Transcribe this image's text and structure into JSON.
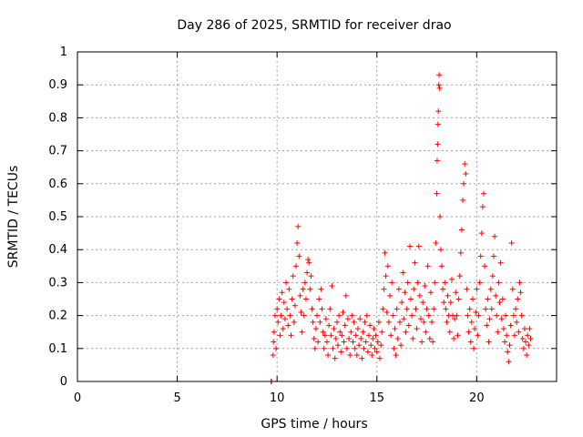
{
  "chart_data": {
    "type": "scatter",
    "title": "Day 286 of 2025, SRMTID for receiver drao",
    "xlabel": "GPS time / hours",
    "ylabel": "SRMTID / TECUs",
    "xlim": [
      0,
      24
    ],
    "ylim": [
      0,
      1
    ],
    "xticks": [
      0,
      5,
      10,
      15,
      20
    ],
    "xtick_labels": [
      "0",
      "5",
      "10",
      "15",
      "20"
    ],
    "yticks": [
      0,
      0.1,
      0.2,
      0.3,
      0.4,
      0.5,
      0.6,
      0.7,
      0.8,
      0.9,
      1
    ],
    "ytick_labels": [
      "0",
      "0.1",
      "0.2",
      "0.3",
      "0.4",
      "0.5",
      "0.6",
      "0.7",
      "0.8",
      "0.9",
      "1"
    ],
    "grid": true,
    "marker": "+",
    "color": "#ff0000",
    "series": [
      {
        "name": "SRMTID",
        "points": [
          [
            9.7,
            0.0
          ],
          [
            9.72,
            0.0
          ],
          [
            9.8,
            0.08
          ],
          [
            9.82,
            0.12
          ],
          [
            9.85,
            0.15
          ],
          [
            9.9,
            0.2
          ],
          [
            9.95,
            0.1
          ],
          [
            10.0,
            0.22
          ],
          [
            10.05,
            0.18
          ],
          [
            10.1,
            0.25
          ],
          [
            10.15,
            0.14
          ],
          [
            10.2,
            0.2
          ],
          [
            10.25,
            0.27
          ],
          [
            10.3,
            0.16
          ],
          [
            10.35,
            0.24
          ],
          [
            10.4,
            0.19
          ],
          [
            10.45,
            0.3
          ],
          [
            10.5,
            0.22
          ],
          [
            10.55,
            0.17
          ],
          [
            10.6,
            0.28
          ],
          [
            10.65,
            0.2
          ],
          [
            10.7,
            0.14
          ],
          [
            10.75,
            0.25
          ],
          [
            10.8,
            0.32
          ],
          [
            10.85,
            0.18
          ],
          [
            10.9,
            0.23
          ],
          [
            10.95,
            0.35
          ],
          [
            11.0,
            0.42
          ],
          [
            11.05,
            0.47
          ],
          [
            11.1,
            0.38
          ],
          [
            11.15,
            0.26
          ],
          [
            11.2,
            0.21
          ],
          [
            11.25,
            0.15
          ],
          [
            11.3,
            0.28
          ],
          [
            11.35,
            0.2
          ],
          [
            11.4,
            0.3
          ],
          [
            11.45,
            0.25
          ],
          [
            11.5,
            0.33
          ],
          [
            11.55,
            0.37
          ],
          [
            11.6,
            0.36
          ],
          [
            11.65,
            0.28
          ],
          [
            11.7,
            0.32
          ],
          [
            11.75,
            0.22
          ],
          [
            11.8,
            0.18
          ],
          [
            11.85,
            0.13
          ],
          [
            11.9,
            0.1
          ],
          [
            11.95,
            0.16
          ],
          [
            12.0,
            0.2
          ],
          [
            12.05,
            0.12
          ],
          [
            12.1,
            0.25
          ],
          [
            12.15,
            0.18
          ],
          [
            12.2,
            0.28
          ],
          [
            12.25,
            0.22
          ],
          [
            12.3,
            0.15
          ],
          [
            12.35,
            0.1
          ],
          [
            12.4,
            0.14
          ],
          [
            12.45,
            0.19
          ],
          [
            12.5,
            0.12
          ],
          [
            12.55,
            0.08
          ],
          [
            12.6,
            0.17
          ],
          [
            12.65,
            0.22
          ],
          [
            12.7,
            0.14
          ],
          [
            12.75,
            0.29
          ],
          [
            12.8,
            0.1
          ],
          [
            12.85,
            0.16
          ],
          [
            12.9,
            0.07
          ],
          [
            12.95,
            0.13
          ],
          [
            13.0,
            0.18
          ],
          [
            13.05,
            0.11
          ],
          [
            13.1,
            0.2
          ],
          [
            13.15,
            0.15
          ],
          [
            13.2,
            0.09
          ],
          [
            13.25,
            0.14
          ],
          [
            13.3,
            0.21
          ],
          [
            13.35,
            0.12
          ],
          [
            13.4,
            0.17
          ],
          [
            13.45,
            0.26
          ],
          [
            13.5,
            0.1
          ],
          [
            13.55,
            0.19
          ],
          [
            13.6,
            0.13
          ],
          [
            13.65,
            0.08
          ],
          [
            13.7,
            0.15
          ],
          [
            13.75,
            0.2
          ],
          [
            13.8,
            0.12
          ],
          [
            13.85,
            0.18
          ],
          [
            13.9,
            0.1
          ],
          [
            13.95,
            0.14
          ],
          [
            14.0,
            0.08
          ],
          [
            14.05,
            0.16
          ],
          [
            14.1,
            0.11
          ],
          [
            14.15,
            0.19
          ],
          [
            14.2,
            0.13
          ],
          [
            14.25,
            0.07
          ],
          [
            14.3,
            0.15
          ],
          [
            14.35,
            0.1
          ],
          [
            14.4,
            0.18
          ],
          [
            14.45,
            0.12
          ],
          [
            14.5,
            0.2
          ],
          [
            14.55,
            0.09
          ],
          [
            14.6,
            0.14
          ],
          [
            14.65,
            0.17
          ],
          [
            14.7,
            0.11
          ],
          [
            14.75,
            0.08
          ],
          [
            14.8,
            0.13
          ],
          [
            14.85,
            0.16
          ],
          [
            14.9,
            0.1
          ],
          [
            14.95,
            0.14
          ],
          [
            15.0,
            0.09
          ],
          [
            15.05,
            0.12
          ],
          [
            15.1,
            0.18
          ],
          [
            15.15,
            0.07
          ],
          [
            15.2,
            0.11
          ],
          [
            15.25,
            0.15
          ],
          [
            15.3,
            0.22
          ],
          [
            15.35,
            0.28
          ],
          [
            15.4,
            0.39
          ],
          [
            15.45,
            0.32
          ],
          [
            15.5,
            0.21
          ],
          [
            15.55,
            0.35
          ],
          [
            15.6,
            0.18
          ],
          [
            15.65,
            0.26
          ],
          [
            15.7,
            0.14
          ],
          [
            15.75,
            0.3
          ],
          [
            15.8,
            0.2
          ],
          [
            15.85,
            0.1
          ],
          [
            15.9,
            0.16
          ],
          [
            15.95,
            0.08
          ],
          [
            16.0,
            0.22
          ],
          [
            16.05,
            0.13
          ],
          [
            16.1,
            0.28
          ],
          [
            16.15,
            0.18
          ],
          [
            16.2,
            0.11
          ],
          [
            16.25,
            0.24
          ],
          [
            16.3,
            0.33
          ],
          [
            16.35,
            0.19
          ],
          [
            16.4,
            0.27
          ],
          [
            16.45,
            0.15
          ],
          [
            16.5,
            0.22
          ],
          [
            16.55,
            0.3
          ],
          [
            16.6,
            0.17
          ],
          [
            16.65,
            0.41
          ],
          [
            16.7,
            0.25
          ],
          [
            16.75,
            0.2
          ],
          [
            16.8,
            0.13
          ],
          [
            16.85,
            0.28
          ],
          [
            16.9,
            0.36
          ],
          [
            16.95,
            0.22
          ],
          [
            17.0,
            0.16
          ],
          [
            17.05,
            0.3
          ],
          [
            17.1,
            0.41
          ],
          [
            17.15,
            0.26
          ],
          [
            17.2,
            0.19
          ],
          [
            17.25,
            0.12
          ],
          [
            17.3,
            0.24
          ],
          [
            17.35,
            0.18
          ],
          [
            17.4,
            0.29
          ],
          [
            17.45,
            0.15
          ],
          [
            17.5,
            0.22
          ],
          [
            17.55,
            0.35
          ],
          [
            17.6,
            0.2
          ],
          [
            17.65,
            0.13
          ],
          [
            17.7,
            0.27
          ],
          [
            17.75,
            0.18
          ],
          [
            17.8,
            0.12
          ],
          [
            17.85,
            0.22
          ],
          [
            17.9,
            0.3
          ],
          [
            17.95,
            0.42
          ],
          [
            18.0,
            0.57
          ],
          [
            18.02,
            0.67
          ],
          [
            18.04,
            0.72
          ],
          [
            18.06,
            0.78
          ],
          [
            18.08,
            0.82
          ],
          [
            18.1,
            0.9
          ],
          [
            18.12,
            0.93
          ],
          [
            18.14,
            0.89
          ],
          [
            18.16,
            0.5
          ],
          [
            18.2,
            0.4
          ],
          [
            18.25,
            0.35
          ],
          [
            18.3,
            0.28
          ],
          [
            18.35,
            0.24
          ],
          [
            18.4,
            0.3
          ],
          [
            18.45,
            0.22
          ],
          [
            18.5,
            0.18
          ],
          [
            18.55,
            0.26
          ],
          [
            18.6,
            0.2
          ],
          [
            18.65,
            0.15
          ],
          [
            18.7,
            0.24
          ],
          [
            18.75,
            0.31
          ],
          [
            18.8,
            0.2
          ],
          [
            18.85,
            0.13
          ],
          [
            18.9,
            0.19
          ],
          [
            18.95,
            0.27
          ],
          [
            19.0,
            0.2
          ],
          [
            19.05,
            0.14
          ],
          [
            19.1,
            0.25
          ],
          [
            19.15,
            0.32
          ],
          [
            19.2,
            0.39
          ],
          [
            19.25,
            0.46
          ],
          [
            19.3,
            0.55
          ],
          [
            19.35,
            0.6
          ],
          [
            19.4,
            0.66
          ],
          [
            19.45,
            0.63
          ],
          [
            19.5,
            0.28
          ],
          [
            19.55,
            0.2
          ],
          [
            19.6,
            0.15
          ],
          [
            19.65,
            0.22
          ],
          [
            19.7,
            0.12
          ],
          [
            19.75,
            0.18
          ],
          [
            19.8,
            0.25
          ],
          [
            19.85,
            0.1
          ],
          [
            19.9,
            0.16
          ],
          [
            19.95,
            0.21
          ],
          [
            20.0,
            0.28
          ],
          [
            20.05,
            0.14
          ],
          [
            20.1,
            0.2
          ],
          [
            20.15,
            0.3
          ],
          [
            20.2,
            0.38
          ],
          [
            20.25,
            0.45
          ],
          [
            20.3,
            0.53
          ],
          [
            20.35,
            0.57
          ],
          [
            20.4,
            0.35
          ],
          [
            20.45,
            0.22
          ],
          [
            20.5,
            0.17
          ],
          [
            20.55,
            0.25
          ],
          [
            20.6,
            0.12
          ],
          [
            20.65,
            0.19
          ],
          [
            20.7,
            0.28
          ],
          [
            20.75,
            0.22
          ],
          [
            20.8,
            0.32
          ],
          [
            20.85,
            0.38
          ],
          [
            20.9,
            0.44
          ],
          [
            20.95,
            0.26
          ],
          [
            21.0,
            0.2
          ],
          [
            21.05,
            0.15
          ],
          [
            21.1,
            0.3
          ],
          [
            21.15,
            0.24
          ],
          [
            21.2,
            0.36
          ],
          [
            21.25,
            0.19
          ],
          [
            21.3,
            0.25
          ],
          [
            21.35,
            0.16
          ],
          [
            21.4,
            0.12
          ],
          [
            21.45,
            0.2
          ],
          [
            21.5,
            0.14
          ],
          [
            21.55,
            0.09
          ],
          [
            21.6,
            0.06
          ],
          [
            21.65,
            0.11
          ],
          [
            21.7,
            0.17
          ],
          [
            21.75,
            0.42
          ],
          [
            21.8,
            0.28
          ],
          [
            21.85,
            0.2
          ],
          [
            21.9,
            0.14
          ],
          [
            21.95,
            0.22
          ],
          [
            22.0,
            0.18
          ],
          [
            22.05,
            0.25
          ],
          [
            22.1,
            0.15
          ],
          [
            22.15,
            0.3
          ],
          [
            22.2,
            0.27
          ],
          [
            22.25,
            0.2
          ],
          [
            22.3,
            0.13
          ],
          [
            22.35,
            0.1
          ],
          [
            22.4,
            0.16
          ],
          [
            22.45,
            0.12
          ],
          [
            22.5,
            0.08
          ],
          [
            22.55,
            0.14
          ],
          [
            22.6,
            0.11
          ],
          [
            22.65,
            0.16
          ],
          [
            22.7,
            0.13
          ]
        ]
      }
    ]
  }
}
